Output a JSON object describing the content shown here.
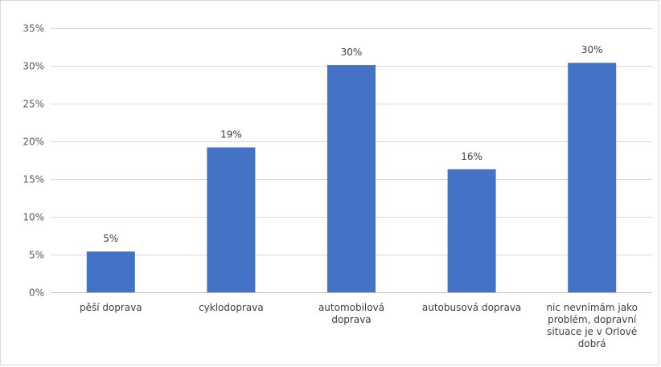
{
  "chart_data": {
    "type": "bar",
    "categories": [
      [
        "pěší doprava"
      ],
      [
        "cyklodoprava"
      ],
      [
        "automobilová",
        "doprava"
      ],
      [
        "autobusová doprava"
      ],
      [
        "nic nevnímám jako",
        "problém, dopravní",
        "situace je v Orlové",
        "dobrá"
      ]
    ],
    "values": [
      5.4,
      19.2,
      30.1,
      16.3,
      30.4
    ],
    "data_labels": [
      "5%",
      "19%",
      "30%",
      "16%",
      "30%"
    ],
    "y_ticks": [
      "0%",
      "5%",
      "10%",
      "15%",
      "20%",
      "25%",
      "30%",
      "35%"
    ],
    "ylim": [
      0,
      35
    ],
    "y_step": 5,
    "grid": true,
    "bar_color": "#4472C4",
    "legend": "none"
  }
}
